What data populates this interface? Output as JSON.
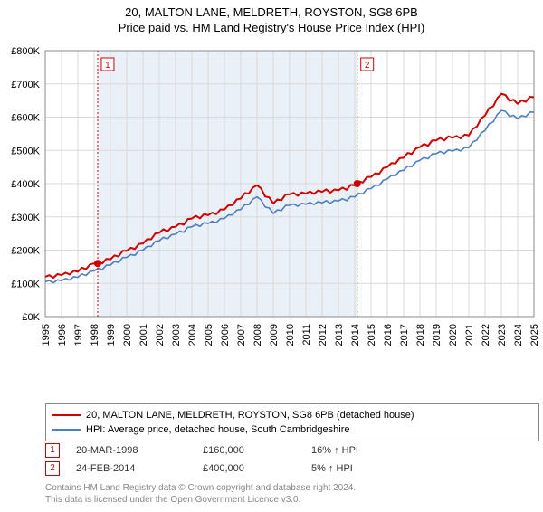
{
  "title_line1": "20, MALTON LANE, MELDRETH, ROYSTON, SG8 6PB",
  "title_line2": "Price paid vs. HM Land Registry's House Price Index (HPI)",
  "chart": {
    "type": "line",
    "background_color": "#ffffff",
    "shaded_band_color": "#eaf0f7",
    "plot_border_color": "#888888",
    "grid_color": "#d9d9d9",
    "x_years": [
      "1995",
      "1996",
      "1997",
      "1998",
      "1999",
      "2000",
      "2001",
      "2002",
      "2003",
      "2004",
      "2005",
      "2006",
      "2007",
      "2008",
      "2009",
      "2010",
      "2011",
      "2012",
      "2013",
      "2014",
      "2015",
      "2016",
      "2017",
      "2018",
      "2019",
      "2020",
      "2021",
      "2022",
      "2023",
      "2024",
      "2025"
    ],
    "y_ticks": [
      0,
      100,
      200,
      300,
      400,
      500,
      600,
      700,
      800
    ],
    "y_tick_labels": [
      "£0K",
      "£100K",
      "£200K",
      "£300K",
      "£400K",
      "£500K",
      "£600K",
      "£700K",
      "£800K"
    ],
    "y_min": 0,
    "y_max": 800,
    "series_property": {
      "label": "20, MALTON LANE, MELDRETH, ROYSTON, SG8 6PB (detached house)",
      "color": "#d00000",
      "width": 2,
      "values_by_year": [
        120,
        125,
        135,
        160,
        172,
        198,
        220,
        252,
        270,
        295,
        305,
        322,
        355,
        395,
        340,
        368,
        370,
        375,
        380,
        395,
        420,
        450,
        478,
        510,
        530,
        538,
        545,
        605,
        670,
        640,
        660
      ]
    },
    "series_hpi": {
      "label": "HPI: Average price, detached house, South Cambridgeshire",
      "color": "#4a7fc1",
      "width": 1.6,
      "values_by_year": [
        105,
        108,
        118,
        138,
        155,
        178,
        200,
        228,
        248,
        270,
        280,
        295,
        322,
        360,
        310,
        335,
        338,
        342,
        348,
        360,
        385,
        414,
        440,
        470,
        490,
        498,
        508,
        560,
        620,
        595,
        615
      ]
    },
    "marker_color": "#d00000",
    "markers": [
      {
        "n": "1",
        "year": 1998.22,
        "value": 160
      },
      {
        "n": "2",
        "year": 2014.15,
        "value": 400
      }
    ],
    "tick_fontsize": 11
  },
  "legend": {
    "rows": [
      {
        "color": "#d00000",
        "text": "20, MALTON LANE, MELDRETH, ROYSTON, SG8 6PB (detached house)"
      },
      {
        "color": "#4a7fc1",
        "text": "HPI: Average price, detached house, South Cambridgeshire"
      }
    ]
  },
  "sales": [
    {
      "n": "1",
      "date": "20-MAR-1998",
      "price": "£160,000",
      "pct": "16% ↑ HPI"
    },
    {
      "n": "2",
      "date": "24-FEB-2014",
      "price": "£400,000",
      "pct": "5% ↑ HPI"
    }
  ],
  "footnote_line1": "Contains HM Land Registry data © Crown copyright and database right 2024.",
  "footnote_line2": "This data is licensed under the Open Government Licence v3.0."
}
